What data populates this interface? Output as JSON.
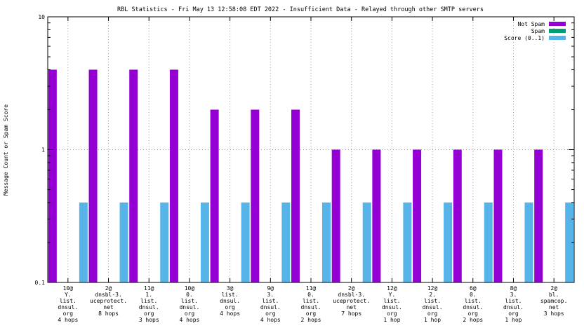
{
  "chart_data": {
    "type": "bar",
    "title": "RBL Statistics - Fri May 13 12:58:08 EDT 2022 - Insufficient Data - Relayed through other SMTP servers",
    "xlabel": "",
    "ylabel": "Message Count or Spam Score",
    "yscale": "log",
    "ylim": [
      0.1,
      10
    ],
    "yticks": [
      {
        "value": 0.1,
        "label": "0.1"
      },
      {
        "value": 1,
        "label": "1"
      },
      {
        "value": 10,
        "label": "10"
      }
    ],
    "grid": true,
    "legend_position": "top-right",
    "categories": [
      [
        "10@",
        "Y.",
        "list.",
        "dnsul.",
        "org",
        "4 hops"
      ],
      [
        "2@",
        "dnsbl-3.",
        "uceprotect.",
        "net",
        "8 hops"
      ],
      [
        "11@",
        "1.",
        "list.",
        "dnsul.",
        "org",
        "3 hops"
      ],
      [
        "10@",
        "0.",
        "list.",
        "dnsul.",
        "org",
        "4 hops"
      ],
      [
        "3@",
        "list.",
        "dnsul.",
        "org",
        "4 hops"
      ],
      [
        "9@",
        "3.",
        "list.",
        "dnsul.",
        "org",
        "4 hops"
      ],
      [
        "11@",
        "0.",
        "list.",
        "dnsul.",
        "org",
        "2 hops"
      ],
      [
        "2@",
        "dnsbl-3.",
        "uceprotect.",
        "net",
        "7 hops"
      ],
      [
        "12@",
        "Y.",
        "list.",
        "dnsul.",
        "org",
        "1 hop"
      ],
      [
        "12@",
        "2.",
        "list.",
        "dnsul.",
        "org",
        "1 hop"
      ],
      [
        "6@",
        "0.",
        "list.",
        "dnsul.",
        "org",
        "2 hops"
      ],
      [
        "8@",
        "3.",
        "list.",
        "dnsul.",
        "org",
        "1 hop"
      ],
      [
        "2@",
        "bl.",
        "spamcop.",
        "net",
        "3 hops"
      ]
    ],
    "series": [
      {
        "name": "Not Spam",
        "color": "#9400d3",
        "values": [
          4,
          4,
          4,
          4,
          2,
          2,
          2,
          1,
          1,
          1,
          1,
          1,
          1
        ]
      },
      {
        "name": "Spam",
        "color": "#009e73",
        "values": [
          0,
          0,
          0,
          0,
          0,
          0,
          0,
          0,
          0,
          0,
          0,
          0,
          0
        ]
      },
      {
        "name": "Score (0..1)",
        "color": "#56b4e9",
        "values": [
          0.4,
          0.4,
          0.4,
          0.4,
          0.4,
          0.4,
          0.4,
          0.4,
          0.4,
          0.4,
          0.4,
          0.4,
          0.4
        ]
      }
    ]
  }
}
